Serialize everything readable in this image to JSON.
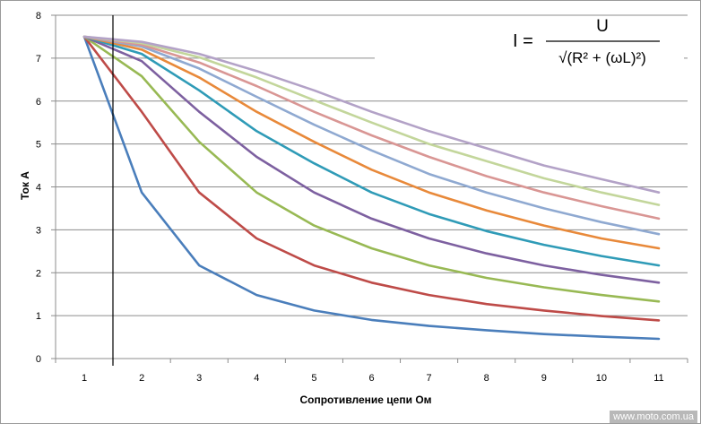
{
  "chart_data": {
    "type": "line",
    "title": "",
    "xlabel": "Сопротивление цепи Ом",
    "ylabel": "Ток А",
    "x": [
      1,
      2,
      3,
      4,
      5,
      6,
      7,
      8,
      9,
      10,
      11
    ],
    "xlim": [
      1,
      11
    ],
    "ylim": [
      0,
      8
    ],
    "yticks": [
      0,
      1,
      2,
      3,
      4,
      5,
      6,
      7,
      8
    ],
    "grid": "horizontal",
    "legend": "none",
    "series": [
      {
        "color": "#4a7ebb",
        "values": [
          7.5,
          3.87,
          2.17,
          1.48,
          1.12,
          0.9,
          0.76,
          0.66,
          0.57,
          0.51,
          0.46
        ]
      },
      {
        "color": "#be4b48",
        "values": [
          7.5,
          5.75,
          3.87,
          2.8,
          2.17,
          1.77,
          1.48,
          1.27,
          1.12,
          0.99,
          0.89
        ]
      },
      {
        "color": "#98b954",
        "values": [
          7.5,
          6.58,
          5.05,
          3.87,
          3.1,
          2.57,
          2.17,
          1.88,
          1.66,
          1.48,
          1.33
        ]
      },
      {
        "color": "#7d60a0",
        "values": [
          7.5,
          6.93,
          5.75,
          4.7,
          3.87,
          3.26,
          2.8,
          2.45,
          2.17,
          1.95,
          1.77
        ]
      },
      {
        "color": "#2f9bb7",
        "values": [
          7.5,
          7.1,
          6.25,
          5.3,
          4.55,
          3.87,
          3.37,
          2.97,
          2.65,
          2.39,
          2.17
        ]
      },
      {
        "color": "#e8893a",
        "values": [
          7.5,
          7.2,
          6.55,
          5.75,
          5.05,
          4.4,
          3.87,
          3.45,
          3.1,
          2.8,
          2.57
        ]
      },
      {
        "color": "#8fa9d1",
        "values": [
          7.5,
          7.27,
          6.76,
          6.1,
          5.45,
          4.85,
          4.3,
          3.87,
          3.5,
          3.18,
          2.9
        ]
      },
      {
        "color": "#d99694",
        "values": [
          7.5,
          7.31,
          6.9,
          6.35,
          5.75,
          5.2,
          4.7,
          4.25,
          3.87,
          3.55,
          3.26
        ]
      },
      {
        "color": "#c3d69b",
        "values": [
          7.5,
          7.35,
          7.02,
          6.55,
          6.02,
          5.5,
          5.0,
          4.6,
          4.2,
          3.87,
          3.58
        ]
      },
      {
        "color": "#b3a2c7",
        "values": [
          7.5,
          7.38,
          7.1,
          6.7,
          6.25,
          5.75,
          5.3,
          4.9,
          4.5,
          4.18,
          3.87
        ]
      }
    ],
    "annotations": {
      "formula_lhs": "I =",
      "formula_numerator": "U",
      "formula_denominator": "√(R² + (ωL)²)"
    }
  },
  "watermark": "www.moto.com.ua"
}
